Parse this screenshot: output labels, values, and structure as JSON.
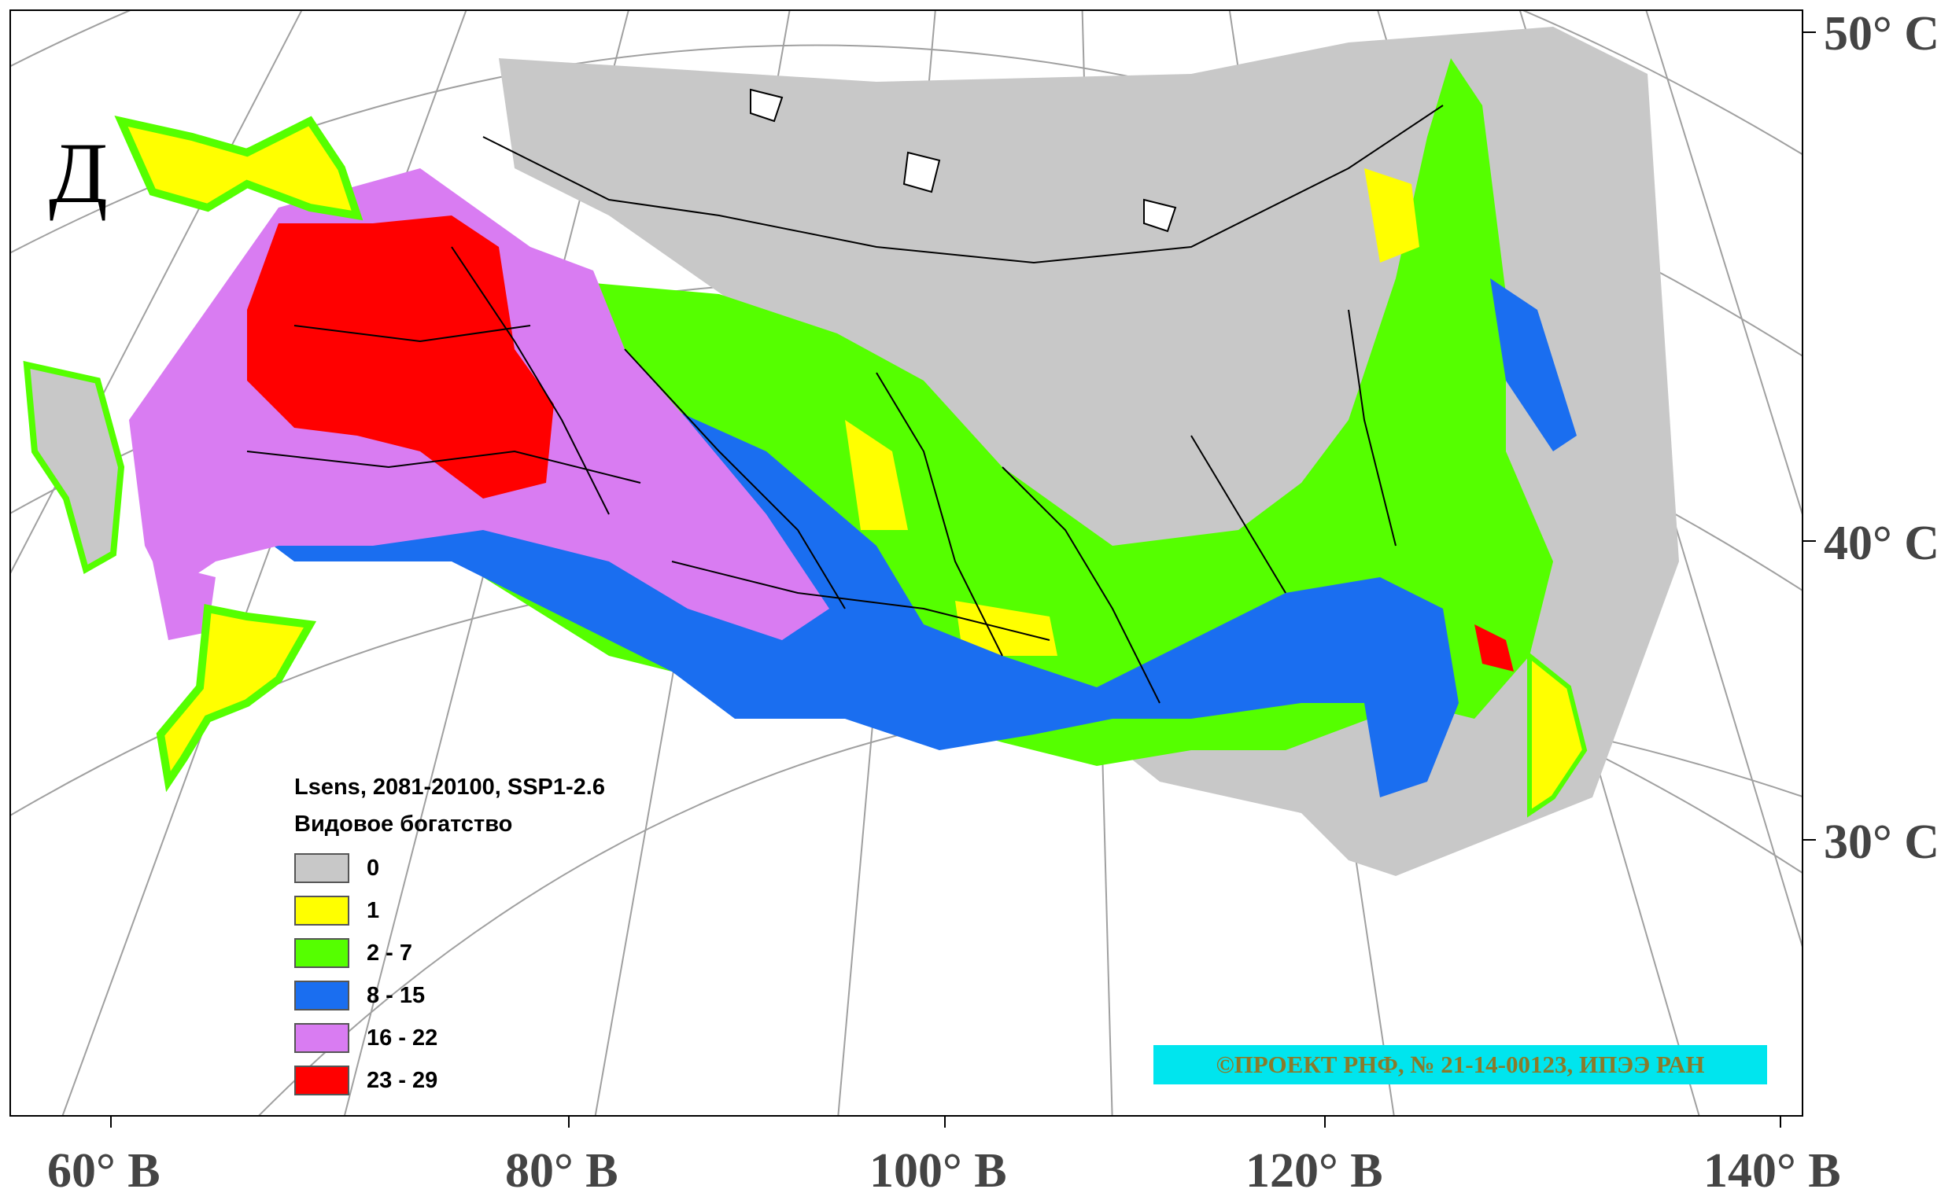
{
  "panel_letter": "Д",
  "lon_labels": [
    "60° В",
    "80° В",
    "100° В",
    "120° В",
    "140° В"
  ],
  "lat_labels": [
    "50° С",
    "40° С",
    "30° С"
  ],
  "legend": {
    "title_line1": "Lsens, 2081-20100, SSP1-2.6",
    "title_line2": "Видовое богатство",
    "items": [
      {
        "label": "0",
        "color": "#c8c8c8"
      },
      {
        "label": "1",
        "color": "#ffff00"
      },
      {
        "label": "2 - 7",
        "color": "#55ff00"
      },
      {
        "label": "8 - 15",
        "color": "#1a6ef0"
      },
      {
        "label": "16 - 22",
        "color": "#d97cf2"
      },
      {
        "label": "23 - 29",
        "color": "#ff0000"
      }
    ]
  },
  "credit": "©ПРОЕКТ РНФ, № 21-14-00123, ИПЭЭ РАН"
}
